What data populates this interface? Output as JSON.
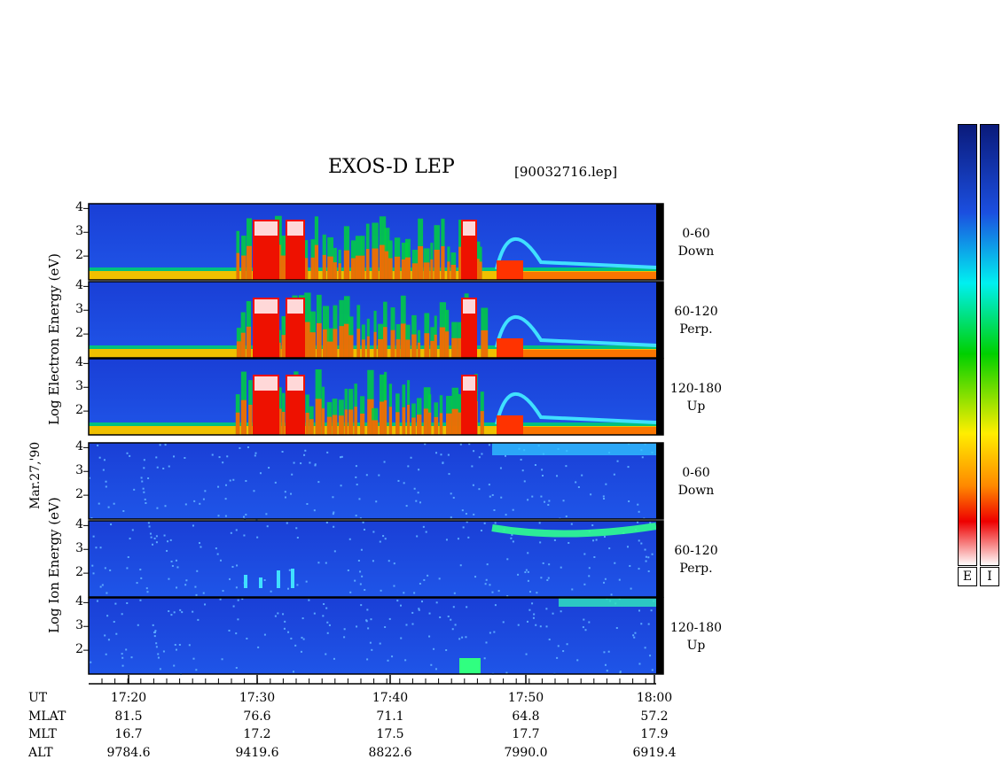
{
  "header": {
    "title": "EXOS-D LEP",
    "filename": "[90032716.lep]"
  },
  "chart_data": {
    "type": "heatmap",
    "title": "EXOS-D LEP",
    "date_label": "Mar.27,'90",
    "groups": [
      {
        "species": "Electron",
        "ylabel_parts": [
          "Log",
          "Electron",
          "Energy",
          "(eV)"
        ],
        "panels": [
          {
            "channel": "0-60",
            "direction": "Down"
          },
          {
            "channel": "60-120",
            "direction": "Perp."
          },
          {
            "channel": "120-180",
            "direction": "Up"
          }
        ]
      },
      {
        "species": "Ion",
        "ylabel_parts": [
          "Log",
          "Ion",
          "Energy",
          "(eV)"
        ],
        "panels": [
          {
            "channel": "0-60",
            "direction": "Down"
          },
          {
            "channel": "60-120",
            "direction": "Perp."
          },
          {
            "channel": "120-180",
            "direction": "Up"
          }
        ]
      }
    ],
    "y_ticks": [
      "4",
      "3",
      "2"
    ],
    "ylim": [
      1,
      4.2
    ],
    "x_range_minutes": [
      17.2666,
      18.0
    ],
    "x_ticks": [
      "17:20",
      "17:30",
      "17:40",
      "17:50",
      "18:00"
    ],
    "orbit_rows": [
      {
        "label": "UT",
        "values": [
          "17:20",
          "17:30",
          "17:40",
          "17:50",
          "18:00"
        ]
      },
      {
        "label": "MLAT",
        "values": [
          "81.5",
          "76.6",
          "71.1",
          "64.8",
          "57.2"
        ]
      },
      {
        "label": "MLT",
        "values": [
          "16.7",
          "17.2",
          "17.5",
          "17.7",
          "17.9"
        ]
      },
      {
        "label": "ALT",
        "values": [
          "9784.6",
          "9419.6",
          "8822.6",
          "7990.0",
          "6919.4"
        ]
      }
    ],
    "colorbars": [
      {
        "label": "E"
      },
      {
        "label": "I"
      }
    ],
    "colors": {
      "scale_top": "#0a1a7a",
      "scale_blue": "#1b4fe0",
      "scale_cyan": "#00f0f0",
      "scale_green": "#00d000",
      "scale_yellow": "#ffee00",
      "scale_orange": "#ff8800",
      "scale_red": "#ee0000",
      "scale_bottom": "#ffffff"
    }
  }
}
